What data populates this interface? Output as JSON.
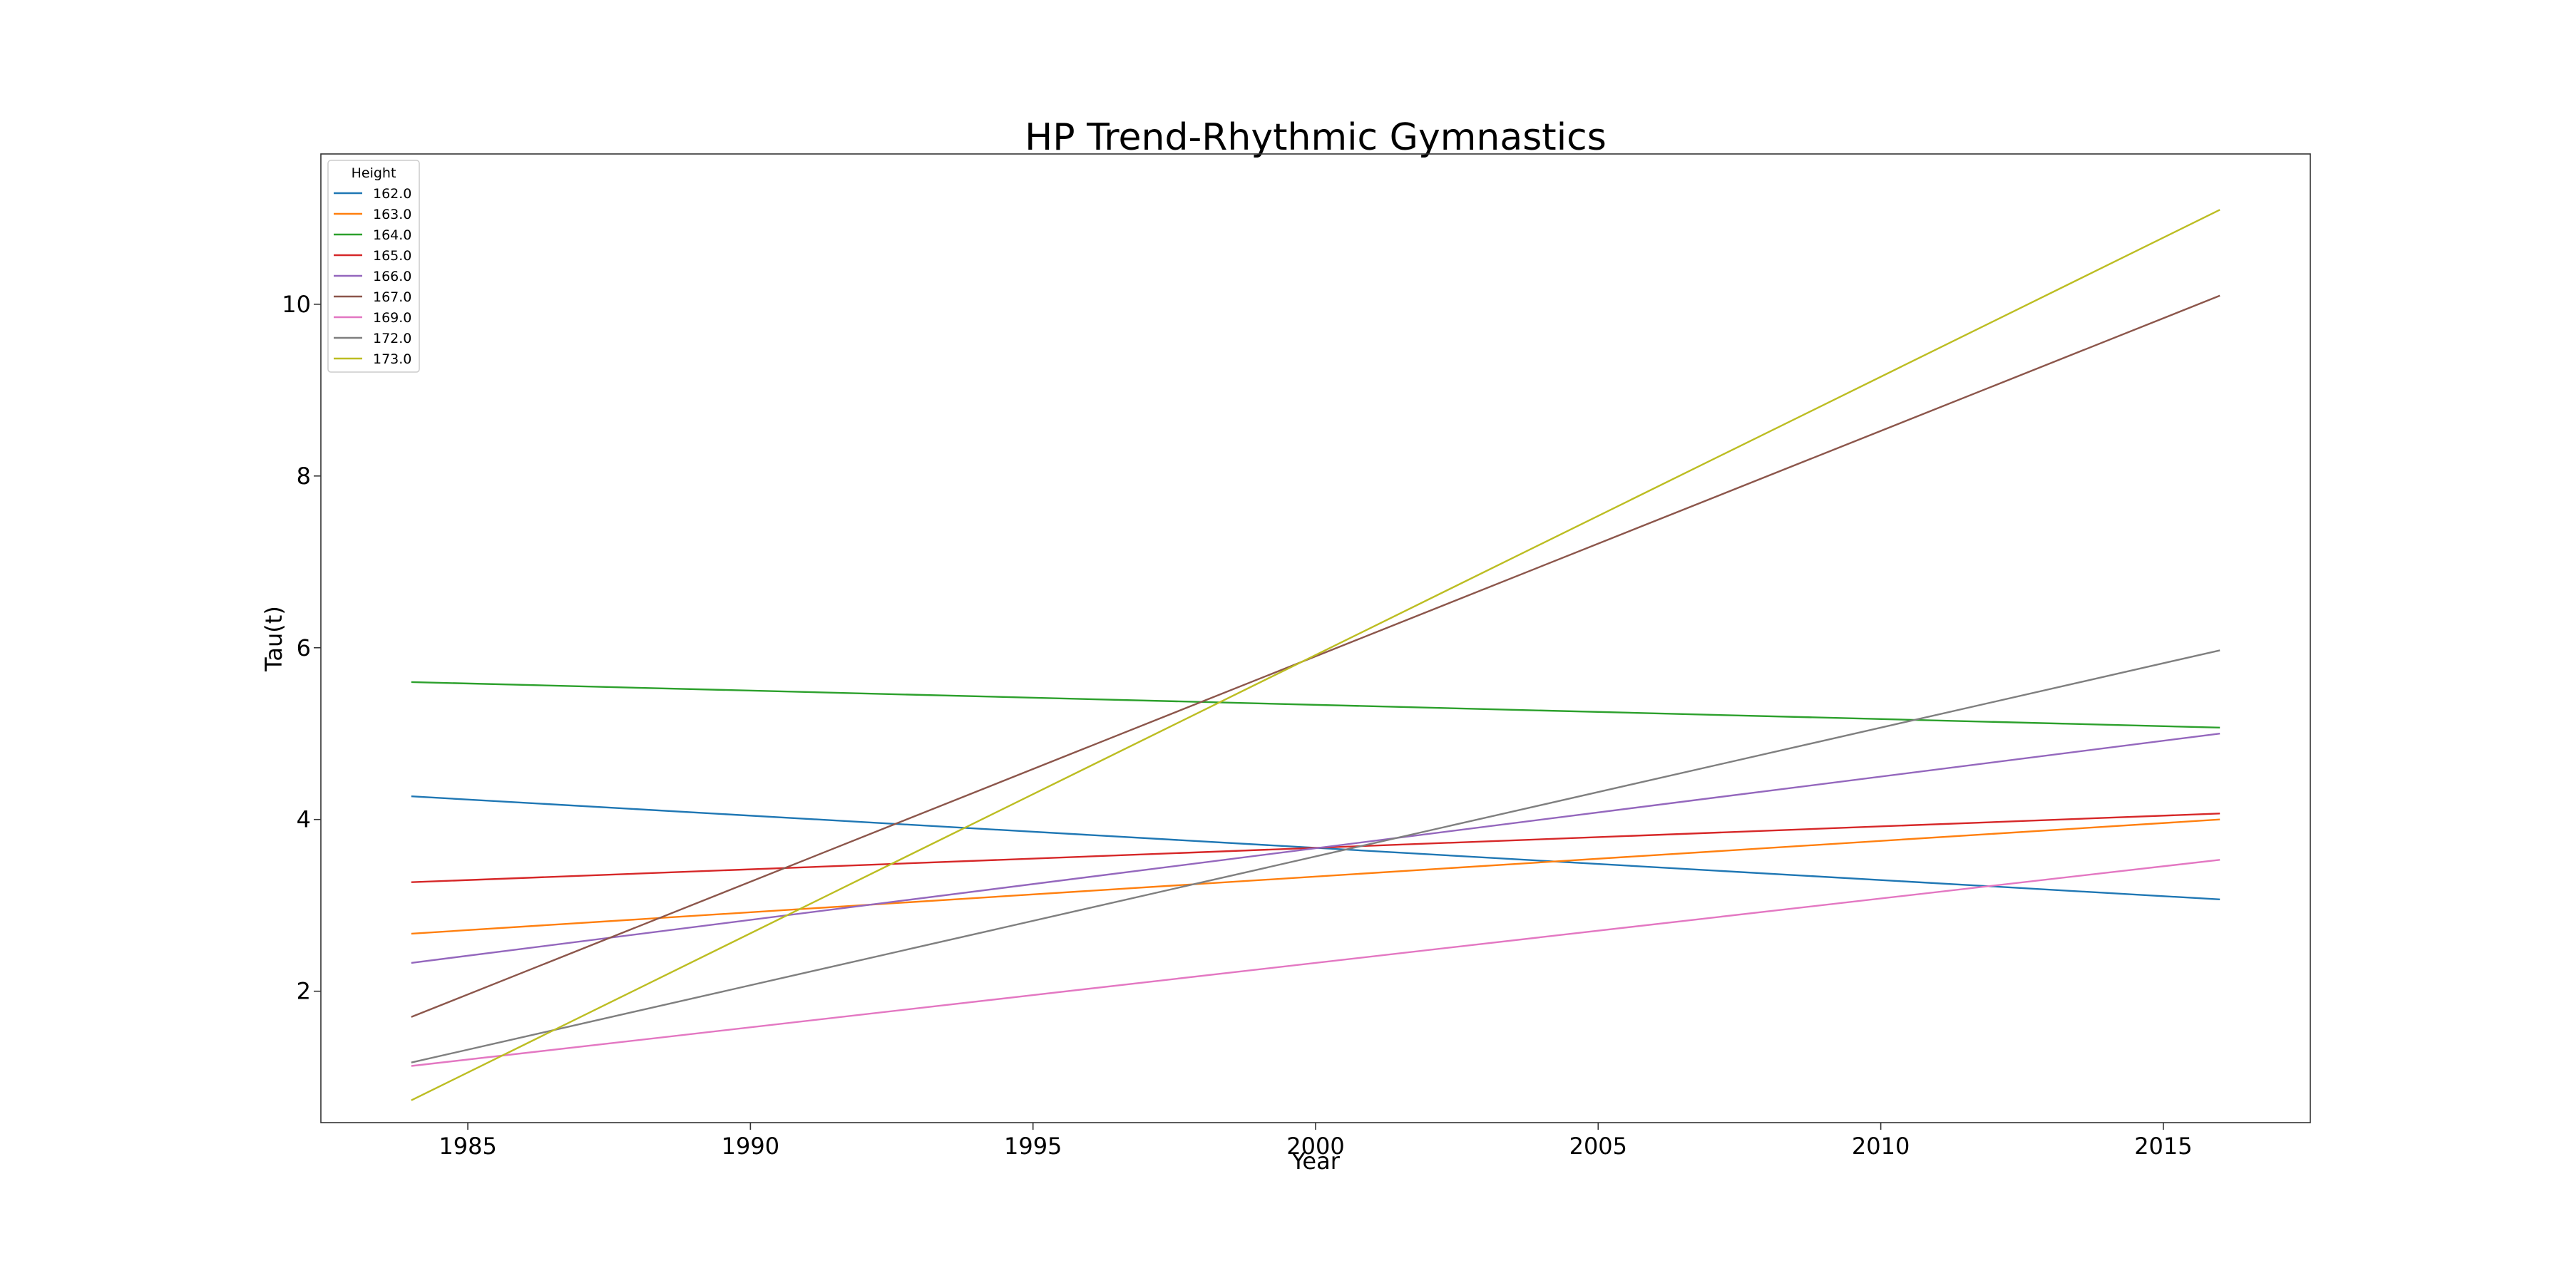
{
  "chart_data": {
    "type": "line",
    "title": "HP Trend-Rhythmic Gymnastics",
    "xlabel": "Year",
    "ylabel": "Tau(t)",
    "xlim": [
      1982.4,
      2017.6
    ],
    "ylim": [
      0.47,
      11.75
    ],
    "xticks": [
      1985,
      1990,
      1995,
      2000,
      2005,
      2010,
      2015
    ],
    "yticks": [
      2,
      4,
      6,
      8,
      10
    ],
    "grid": false,
    "legend": {
      "title": "Height",
      "placement": "top-left"
    },
    "x": [
      1984,
      2016
    ],
    "series": [
      {
        "name": "162.0",
        "color": "#1f77b4",
        "values": [
          4.27,
          3.07
        ]
      },
      {
        "name": "163.0",
        "color": "#ff7f0e",
        "values": [
          2.67,
          4.0
        ]
      },
      {
        "name": "164.0",
        "color": "#2ca02c",
        "values": [
          5.6,
          5.07
        ]
      },
      {
        "name": "165.0",
        "color": "#d62728",
        "values": [
          3.27,
          4.07
        ]
      },
      {
        "name": "166.0",
        "color": "#9467bd",
        "values": [
          2.33,
          5.0
        ]
      },
      {
        "name": "167.0",
        "color": "#8c564b",
        "values": [
          1.7,
          10.1
        ]
      },
      {
        "name": "169.0",
        "color": "#e377c2",
        "values": [
          1.13,
          3.53
        ]
      },
      {
        "name": "172.0",
        "color": "#7f7f7f",
        "values": [
          1.17,
          5.97
        ]
      },
      {
        "name": "173.0",
        "color": "#bcbd22",
        "values": [
          0.73,
          11.1
        ]
      }
    ]
  }
}
